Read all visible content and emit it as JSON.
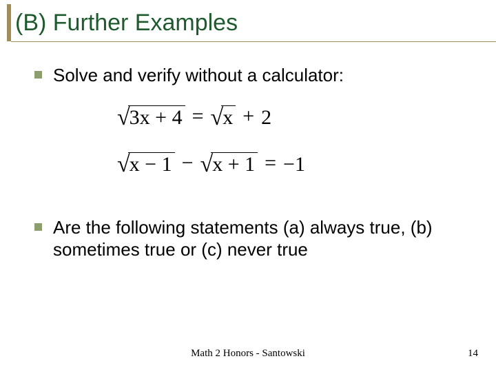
{
  "colors": {
    "title_text": "#1f5a2f",
    "accent": "#a08c58",
    "bullet": "#8d9e6e",
    "body_text": "#000000",
    "footer_text": "#000000",
    "background": "#ffffff"
  },
  "title": "(B) Further Examples",
  "bullets": [
    "Solve and verify without a calculator:",
    "Are the following statements (a) always true, (b) sometimes true or (c) never true"
  ],
  "equations": [
    {
      "lhs_radicand": "3x + 4",
      "rhs_type": "sqrt_plus_const",
      "rhs_radicand": "x",
      "rhs_const": "2",
      "relation": "="
    },
    {
      "lhs_a_radicand": "x − 1",
      "lhs_b_radicand": "x + 1",
      "rhs_const": "−1",
      "relation": "="
    }
  ],
  "footer": "Math 2 Honors - Santowski",
  "page_number": "14",
  "fontsizes": {
    "title": 34,
    "body": 26,
    "equation": 30,
    "footer": 15
  }
}
